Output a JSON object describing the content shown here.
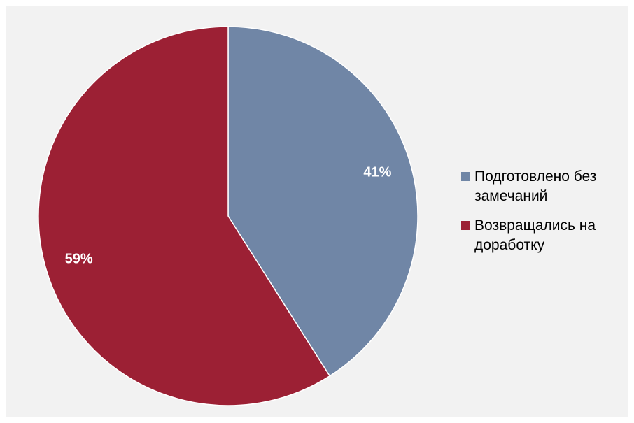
{
  "chart_data": {
    "type": "pie",
    "title": "",
    "series": [
      {
        "values": [
          41,
          59
        ],
        "labels": [
          "41%",
          "59%"
        ]
      }
    ],
    "categories": [
      "Подготовлено без замечаний",
      "Возвращались на доработку"
    ],
    "colors": [
      "#7086a6",
      "#9c2034"
    ],
    "start_angle_deg": 0,
    "direction": "clockwise",
    "legend_position": "right"
  }
}
